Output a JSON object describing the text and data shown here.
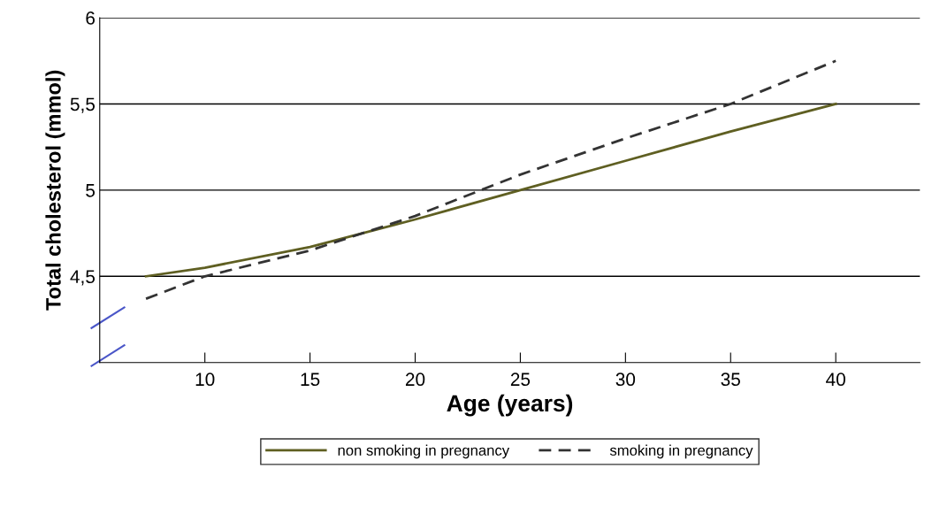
{
  "chart_data": {
    "type": "line",
    "xlabel": "Age (years)",
    "ylabel": "Total cholesterol (mmol)",
    "x": [
      7.2,
      10,
      15,
      20,
      25,
      30,
      35,
      40
    ],
    "series": [
      {
        "name": "non smoking in pregnancy",
        "color": "#5f5f22",
        "line_style": "solid",
        "values": [
          4.5,
          4.55,
          4.67,
          4.83,
          5.0,
          5.17,
          5.34,
          5.5
        ]
      },
      {
        "name": "smoking in pregnancy",
        "color": "#333333",
        "line_style": "dashed",
        "values": [
          4.37,
          4.5,
          4.65,
          4.85,
          5.09,
          5.3,
          5.5,
          5.75
        ]
      }
    ],
    "xlim": [
      5,
      44
    ],
    "xticks": [
      10,
      15,
      20,
      25,
      30,
      35,
      40
    ],
    "ylim": [
      4,
      6
    ],
    "yticks": [
      {
        "value": 4.5,
        "label": "4,5"
      },
      {
        "value": 5,
        "label": "5"
      },
      {
        "value": 5.5,
        "label": "5,5"
      },
      {
        "value": 6,
        "label": "6"
      }
    ],
    "grid": "y",
    "legend": "bottom",
    "marker": "none"
  }
}
